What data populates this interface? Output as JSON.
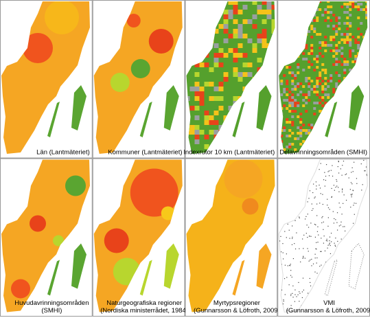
{
  "panels": [
    {
      "lines": [
        "Län (Lantmäteriet)"
      ]
    },
    {
      "lines": [
        "Kommuner (Lantmäteriet)"
      ]
    },
    {
      "lines": [
        "Indexrutor 10 km (Lantmäteriet)"
      ]
    },
    {
      "lines": [
        "Delavrinningsområden (SMHI)"
      ]
    },
    {
      "lines": [
        "Huvudavrinningsområden",
        "(SMHI)"
      ]
    },
    {
      "lines": [
        "Naturgeografiska regioner",
        "(Nordiska ministerrådet, 1984)"
      ]
    },
    {
      "lines": [
        "Myrtypsregioner",
        "(Gunnarsson & Löfroth, 2009)"
      ]
    },
    {
      "lines": [
        "VMI",
        "(Gunnarsson & Löfroth, 2009)"
      ]
    }
  ]
}
